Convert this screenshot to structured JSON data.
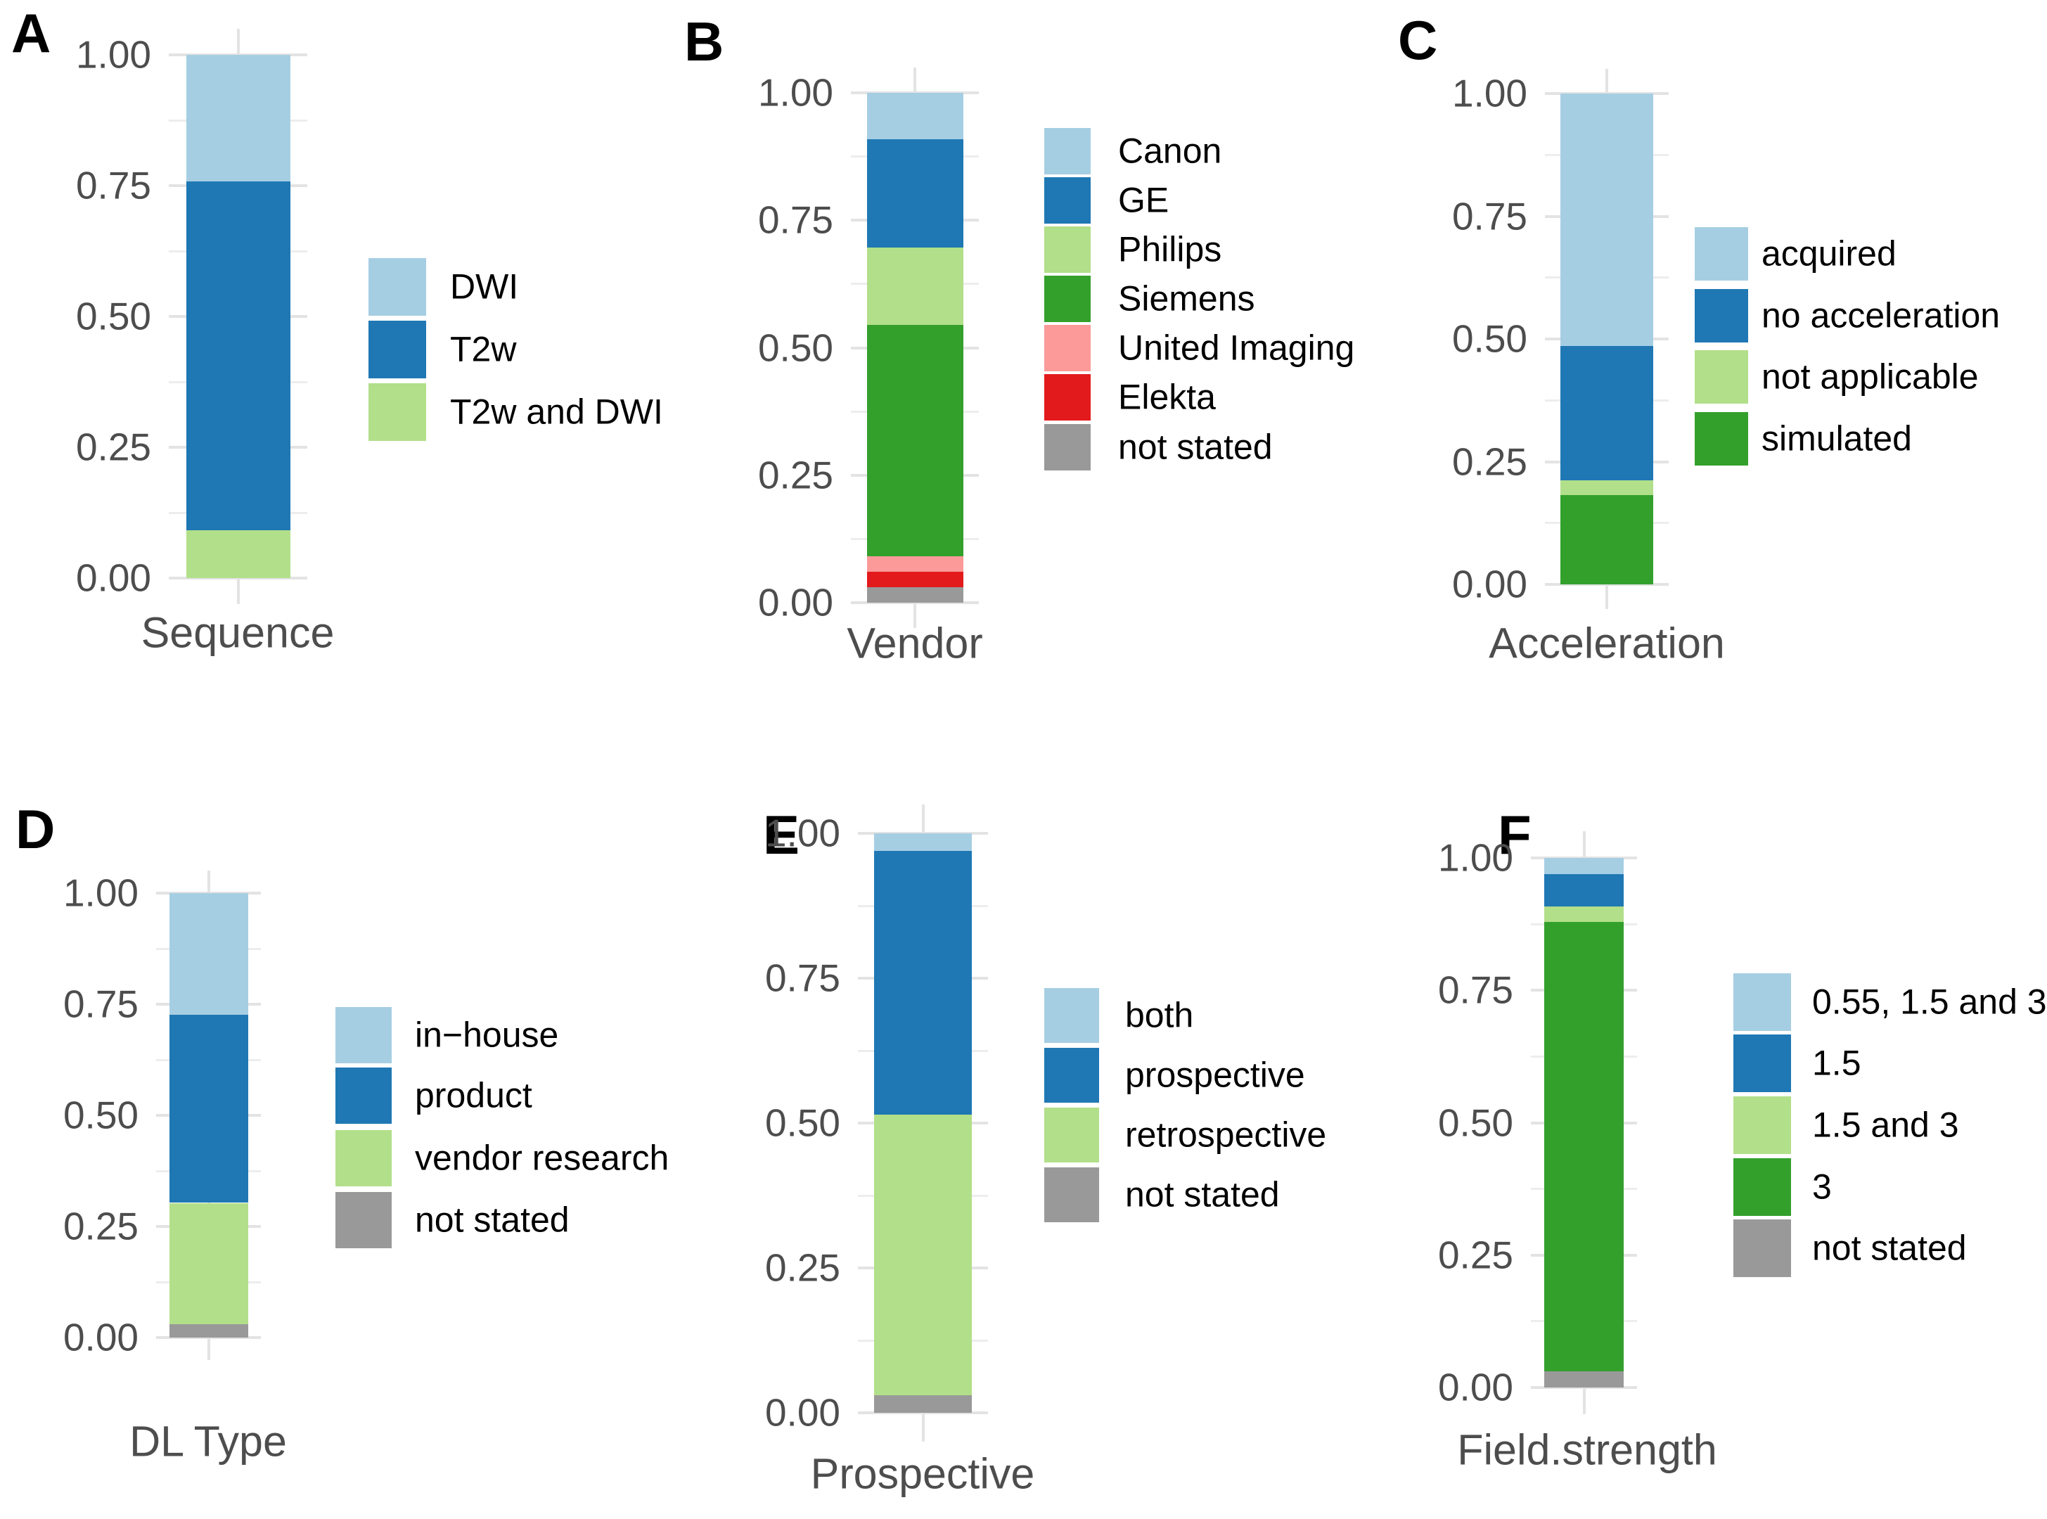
{
  "figure": {
    "background": "#ffffff"
  },
  "palette": {
    "light_blue": "#A6CEE3",
    "blue": "#1F78B4",
    "light_green": "#B2DF8A",
    "green": "#33A02C",
    "pink": "#FB9A99",
    "red": "#E31A1C",
    "gray": "#999999"
  },
  "axis": {
    "tick_labels": [
      "1.00",
      "0.75",
      "0.50",
      "0.25",
      "0.00"
    ],
    "tick_values": [
      1.0,
      0.75,
      0.5,
      0.25,
      0.0
    ],
    "minor_tick_values": [
      0.875,
      0.625,
      0.375,
      0.125
    ]
  },
  "chart_data": [
    {
      "id": "A",
      "tag": "A",
      "type": "bar",
      "stacked": true,
      "xlabel": "Sequence",
      "ylim": [
        0,
        1
      ],
      "grid": true,
      "legend_position": "right",
      "segments": [
        {
          "label": "DWI",
          "color": "light_blue",
          "value": 0.242
        },
        {
          "label": "T2w",
          "color": "blue",
          "value": 0.667
        },
        {
          "label": "T2w and DWI",
          "color": "light_green",
          "value": 0.091
        }
      ]
    },
    {
      "id": "B",
      "tag": "B",
      "type": "bar",
      "stacked": true,
      "xlabel": "Vendor",
      "ylim": [
        0,
        1
      ],
      "grid": true,
      "legend_position": "right",
      "segments": [
        {
          "label": "Canon",
          "color": "light_blue",
          "value": 0.091
        },
        {
          "label": "GE",
          "color": "blue",
          "value": 0.212
        },
        {
          "label": "Philips",
          "color": "light_green",
          "value": 0.152
        },
        {
          "label": "Siemens",
          "color": "green",
          "value": 0.454
        },
        {
          "label": "United Imaging",
          "color": "pink",
          "value": 0.03
        },
        {
          "label": "Elekta",
          "color": "red",
          "value": 0.031
        },
        {
          "label": "not stated",
          "color": "gray",
          "value": 0.03
        }
      ]
    },
    {
      "id": "C",
      "tag": "C",
      "type": "bar",
      "stacked": true,
      "xlabel": "Acceleration",
      "ylim": [
        0,
        1
      ],
      "grid": true,
      "legend_position": "right",
      "segments": [
        {
          "label": "acquired",
          "color": "light_blue",
          "value": 0.515
        },
        {
          "label": "no acceleration",
          "color": "blue",
          "value": 0.273
        },
        {
          "label": "not applicable",
          "color": "light_green",
          "value": 0.03
        },
        {
          "label": "simulated",
          "color": "green",
          "value": 0.182
        }
      ]
    },
    {
      "id": "D",
      "tag": "D",
      "type": "bar",
      "stacked": true,
      "xlabel": "DL Type",
      "ylim": [
        0,
        1
      ],
      "grid": true,
      "legend_position": "right",
      "segments": [
        {
          "label": "in−house",
          "color": "light_blue",
          "value": 0.273
        },
        {
          "label": "product",
          "color": "blue",
          "value": 0.424
        },
        {
          "label": "vendor research",
          "color": "light_green",
          "value": 0.273
        },
        {
          "label": "not stated",
          "color": "gray",
          "value": 0.03
        }
      ]
    },
    {
      "id": "E",
      "tag": "E",
      "type": "bar",
      "stacked": true,
      "xlabel": "Prospective",
      "ylim": [
        0,
        1
      ],
      "grid": true,
      "legend_position": "right",
      "segments": [
        {
          "label": "both",
          "color": "light_blue",
          "value": 0.03
        },
        {
          "label": "prospective",
          "color": "blue",
          "value": 0.455
        },
        {
          "label": "retrospective",
          "color": "light_green",
          "value": 0.485
        },
        {
          "label": "not stated",
          "color": "gray",
          "value": 0.03
        }
      ]
    },
    {
      "id": "F",
      "tag": "F",
      "type": "bar",
      "stacked": true,
      "xlabel": "Field.strength",
      "ylim": [
        0,
        1
      ],
      "grid": true,
      "legend_position": "right",
      "segments": [
        {
          "label": "0.55, 1.5 and 3",
          "color": "light_blue",
          "value": 0.03
        },
        {
          "label": "1.5",
          "color": "blue",
          "value": 0.061
        },
        {
          "label": "1.5 and 3",
          "color": "light_green",
          "value": 0.03
        },
        {
          "label": "3",
          "color": "green",
          "value": 0.849
        },
        {
          "label": "not stated",
          "color": "gray",
          "value": 0.03
        }
      ]
    }
  ]
}
